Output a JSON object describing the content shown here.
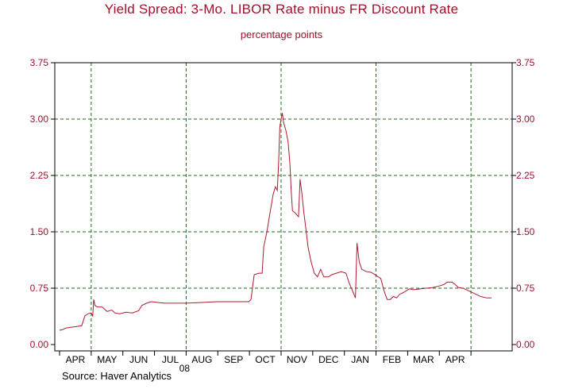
{
  "chart_data": {
    "type": "line",
    "title": "Yield Spread: 3-Mo. LIBOR Rate minus FR Discount Rate",
    "subtitle": "percentage points",
    "source": "Source: Haver Analytics",
    "year_label": "08",
    "ylim": [
      0.0,
      3.75
    ],
    "y_ticks": [
      "0.00",
      "0.75",
      "1.50",
      "2.25",
      "3.00",
      "3.75"
    ],
    "y_tick_values": [
      0.0,
      0.75,
      1.5,
      2.25,
      3.0,
      3.75
    ],
    "month_labels": [
      "APR",
      "MAY",
      "JUN",
      "JUL",
      "AUG",
      "SEP",
      "OCT",
      "NOV",
      "DEC",
      "JAN",
      "FEB",
      "MAR",
      "APR"
    ],
    "grid": "dashed vertical lines at quarters, dashed horizontal lines at each y tick",
    "colors": {
      "line": "#b01a2e",
      "axis_text": "#a0112a",
      "grid": "#1a6b1a"
    },
    "x_unit": "months since start of March (2008)",
    "x_range": [
      0.0,
      13.8
    ],
    "series": [
      {
        "name": "",
        "points": [
          [
            0.0,
            0.19
          ],
          [
            0.1,
            0.2
          ],
          [
            0.2,
            0.22
          ],
          [
            0.35,
            0.23
          ],
          [
            0.55,
            0.24
          ],
          [
            0.7,
            0.25
          ],
          [
            0.8,
            0.38
          ],
          [
            0.9,
            0.41
          ],
          [
            1.0,
            0.42
          ],
          [
            1.05,
            0.38
          ],
          [
            1.08,
            0.6
          ],
          [
            1.12,
            0.52
          ],
          [
            1.2,
            0.5
          ],
          [
            1.35,
            0.5
          ],
          [
            1.5,
            0.44
          ],
          [
            1.65,
            0.46
          ],
          [
            1.75,
            0.42
          ],
          [
            1.9,
            0.41
          ],
          [
            2.1,
            0.43
          ],
          [
            2.3,
            0.42
          ],
          [
            2.5,
            0.45
          ],
          [
            2.6,
            0.52
          ],
          [
            2.75,
            0.55
          ],
          [
            2.9,
            0.57
          ],
          [
            3.1,
            0.56
          ],
          [
            3.3,
            0.55
          ],
          [
            3.6,
            0.55
          ],
          [
            4.0,
            0.55
          ],
          [
            4.5,
            0.56
          ],
          [
            5.0,
            0.57
          ],
          [
            5.5,
            0.57
          ],
          [
            5.98,
            0.57
          ],
          [
            6.05,
            0.6
          ],
          [
            6.15,
            0.93
          ],
          [
            6.3,
            0.95
          ],
          [
            6.4,
            0.95
          ],
          [
            6.45,
            1.3
          ],
          [
            6.55,
            1.5
          ],
          [
            6.65,
            1.75
          ],
          [
            6.75,
            2.0
          ],
          [
            6.82,
            2.1
          ],
          [
            6.88,
            2.05
          ],
          [
            6.92,
            2.4
          ],
          [
            6.96,
            2.9
          ],
          [
            7.0,
            3.0
          ],
          [
            7.04,
            3.08
          ],
          [
            7.08,
            2.95
          ],
          [
            7.15,
            2.85
          ],
          [
            7.22,
            2.7
          ],
          [
            7.28,
            2.4
          ],
          [
            7.32,
            2.05
          ],
          [
            7.36,
            1.78
          ],
          [
            7.45,
            1.75
          ],
          [
            7.55,
            1.7
          ],
          [
            7.6,
            2.2
          ],
          [
            7.66,
            2.0
          ],
          [
            7.72,
            1.75
          ],
          [
            7.78,
            1.55
          ],
          [
            7.85,
            1.3
          ],
          [
            7.95,
            1.1
          ],
          [
            8.05,
            0.95
          ],
          [
            8.15,
            0.9
          ],
          [
            8.25,
            1.0
          ],
          [
            8.35,
            0.9
          ],
          [
            8.5,
            0.9
          ],
          [
            8.6,
            0.93
          ],
          [
            8.75,
            0.95
          ],
          [
            8.9,
            0.97
          ],
          [
            9.05,
            0.95
          ],
          [
            9.15,
            0.82
          ],
          [
            9.25,
            0.72
          ],
          [
            9.35,
            0.62
          ],
          [
            9.4,
            1.35
          ],
          [
            9.47,
            1.1
          ],
          [
            9.55,
            1.0
          ],
          [
            9.7,
            0.97
          ],
          [
            9.85,
            0.96
          ],
          [
            10.0,
            0.92
          ],
          [
            10.15,
            0.88
          ],
          [
            10.25,
            0.72
          ],
          [
            10.35,
            0.6
          ],
          [
            10.45,
            0.6
          ],
          [
            10.55,
            0.64
          ],
          [
            10.65,
            0.62
          ],
          [
            10.75,
            0.67
          ],
          [
            10.9,
            0.7
          ],
          [
            11.05,
            0.74
          ],
          [
            11.2,
            0.73
          ],
          [
            11.4,
            0.74
          ],
          [
            11.6,
            0.75
          ],
          [
            11.8,
            0.76
          ],
          [
            12.0,
            0.78
          ],
          [
            12.15,
            0.8
          ],
          [
            12.25,
            0.83
          ],
          [
            12.4,
            0.83
          ],
          [
            12.5,
            0.8
          ],
          [
            12.6,
            0.76
          ],
          [
            12.75,
            0.75
          ],
          [
            12.9,
            0.72
          ],
          [
            13.1,
            0.68
          ],
          [
            13.3,
            0.64
          ],
          [
            13.5,
            0.62
          ],
          [
            13.65,
            0.62
          ]
        ]
      }
    ]
  }
}
